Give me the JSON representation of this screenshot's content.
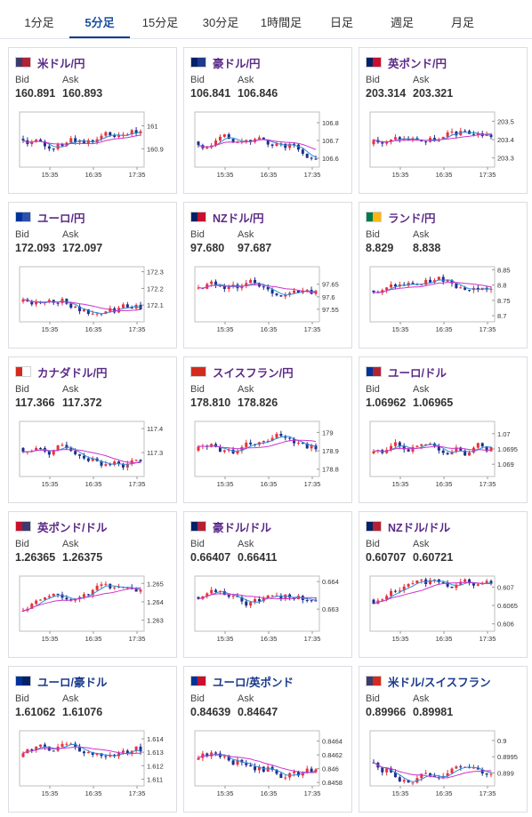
{
  "tabs": [
    {
      "label": "1分足",
      "active": false
    },
    {
      "label": "5分足",
      "active": true
    },
    {
      "label": "15分足",
      "active": false
    },
    {
      "label": "30分足",
      "active": false
    },
    {
      "label": "1時間足",
      "active": false
    },
    {
      "label": "日足",
      "active": false
    },
    {
      "label": "週足",
      "active": false
    },
    {
      "label": "月足",
      "active": false
    }
  ],
  "labels": {
    "bid": "Bid",
    "ask": "Ask"
  },
  "colors": {
    "up": "#e8323c",
    "down": "#1f2f8c",
    "ma_short": "#2a8fd8",
    "ma_long": "#cc33cc"
  },
  "x_ticks": [
    "15:35",
    "16:35",
    "17:35"
  ],
  "cards": [
    {
      "pair": "米ドル/円",
      "flag": "us",
      "bid": "160.891",
      "ask": "160.893",
      "ticks": [
        "161",
        "160.9"
      ],
      "ylim": [
        160.82,
        161.06
      ],
      "seed": 1
    },
    {
      "pair": "豪ドル/円",
      "flag": "au",
      "bid": "106.841",
      "ask": "106.846",
      "ticks": [
        "106.8",
        "106.7",
        "106.6"
      ],
      "ylim": [
        106.55,
        106.86
      ],
      "seed": 2
    },
    {
      "pair": "英ポンド/円",
      "flag": "gb",
      "bid": "203.314",
      "ask": "203.321",
      "ticks": [
        "203.5",
        "203.4",
        "203.3"
      ],
      "ylim": [
        203.25,
        203.55
      ],
      "seed": 3
    },
    {
      "pair": "ユーロ/円",
      "flag": "eu",
      "bid": "172.093",
      "ask": "172.097",
      "ticks": [
        "172.3",
        "172.2",
        "172.1"
      ],
      "ylim": [
        172.0,
        172.33
      ],
      "seed": 4
    },
    {
      "pair": "NZドル/円",
      "flag": "nz",
      "bid": "97.680",
      "ask": "97.687",
      "ticks": [
        "97.65",
        "97.6",
        "97.55"
      ],
      "ylim": [
        97.5,
        97.72
      ],
      "seed": 5
    },
    {
      "pair": "ランド/円",
      "flag": "za",
      "bid": "8.829",
      "ask": "8.838",
      "ticks": [
        "8.85",
        "8.8",
        "8.75",
        "8.7"
      ],
      "ylim": [
        8.68,
        8.86
      ],
      "seed": 6
    },
    {
      "pair": "カナダドル/円",
      "flag": "ca",
      "bid": "117.366",
      "ask": "117.372",
      "ticks": [
        "117.4",
        "117.3"
      ],
      "ylim": [
        117.2,
        117.43
      ],
      "seed": 7
    },
    {
      "pair": "スイスフラン/円",
      "flag": "ch",
      "bid": "178.810",
      "ask": "178.826",
      "ticks": [
        "179",
        "178.9",
        "178.8"
      ],
      "ylim": [
        178.76,
        179.06
      ],
      "seed": 8
    },
    {
      "pair": "ユーロ/ドル",
      "flag": "euus",
      "bid": "1.06962",
      "ask": "1.06965",
      "ticks": [
        "1.07",
        "1.0695",
        "1.069"
      ],
      "ylim": [
        1.0686,
        1.0704
      ],
      "seed": 9
    },
    {
      "pair": "英ポンド/ドル",
      "flag": "gbus",
      "bid": "1.26365",
      "ask": "1.26375",
      "ticks": [
        "1.265",
        "1.264",
        "1.263"
      ],
      "ylim": [
        1.2624,
        1.2654
      ],
      "seed": 10
    },
    {
      "pair": "豪ドル/ドル",
      "flag": "auus",
      "bid": "0.66407",
      "ask": "0.66411",
      "ticks": [
        "0.664",
        "0.663"
      ],
      "ylim": [
        0.6622,
        0.6642
      ],
      "seed": 11
    },
    {
      "pair": "NZドル/ドル",
      "flag": "nzus",
      "bid": "0.60707",
      "ask": "0.60721",
      "ticks": [
        "0.607",
        "0.6065",
        "0.606"
      ],
      "ylim": [
        0.6058,
        0.6073
      ],
      "seed": 12
    },
    {
      "pair": "ユーロ/豪ドル",
      "flag": "euau",
      "bid": "1.61062",
      "ask": "1.61076",
      "ticks": [
        "1.614",
        "1.613",
        "1.612",
        "1.611"
      ],
      "ylim": [
        1.6105,
        1.6146
      ],
      "seed": 13
    },
    {
      "pair": "ユーロ/英ポンド",
      "flag": "eugb",
      "bid": "0.84639",
      "ask": "0.84647",
      "ticks": [
        "0.8464",
        "0.8462",
        "0.846",
        "0.8458"
      ],
      "ylim": [
        0.84575,
        0.84655
      ],
      "seed": 14
    },
    {
      "pair": "米ドル/スイスフラン",
      "flag": "usch",
      "bid": "0.89966",
      "ask": "0.89981",
      "ticks": [
        "0.9",
        "0.8995",
        "0.899"
      ],
      "ylim": [
        0.8986,
        0.9003
      ],
      "seed": 15
    }
  ]
}
